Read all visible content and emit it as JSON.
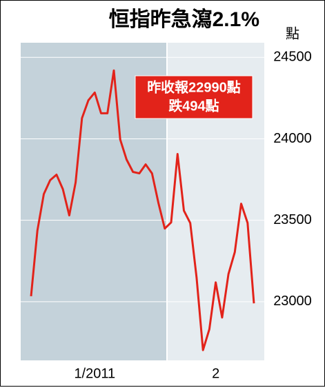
{
  "chart_data": {
    "type": "line",
    "title": "恒指昨急瀉2.1%",
    "y_unit": "點",
    "annotation": [
      "昨收報22990點",
      "跌494點"
    ],
    "categories": [
      null,
      null,
      null,
      null,
      null,
      null,
      null,
      null,
      null,
      null,
      "1/2011",
      null,
      null,
      null,
      null,
      null,
      null,
      null,
      null,
      null,
      null,
      null,
      null,
      null,
      null,
      null,
      null,
      null,
      null,
      "2",
      null,
      null,
      null,
      null,
      null,
      null
    ],
    "values": [
      23034,
      23437,
      23661,
      23746,
      23780,
      23691,
      23530,
      23733,
      24127,
      24237,
      24284,
      24157,
      24157,
      24420,
      23996,
      23873,
      23797,
      23788,
      23843,
      23788,
      23606,
      23449,
      23487,
      23907,
      23559,
      23483,
      23148,
      22703,
      22831,
      23119,
      22903,
      23170,
      23305,
      23602,
      23484,
      22990
    ],
    "color": "#e2231a",
    "ylim": [
      22640,
      24590
    ],
    "yticks": [
      23000,
      23500,
      24000,
      24500
    ],
    "grid": true
  }
}
